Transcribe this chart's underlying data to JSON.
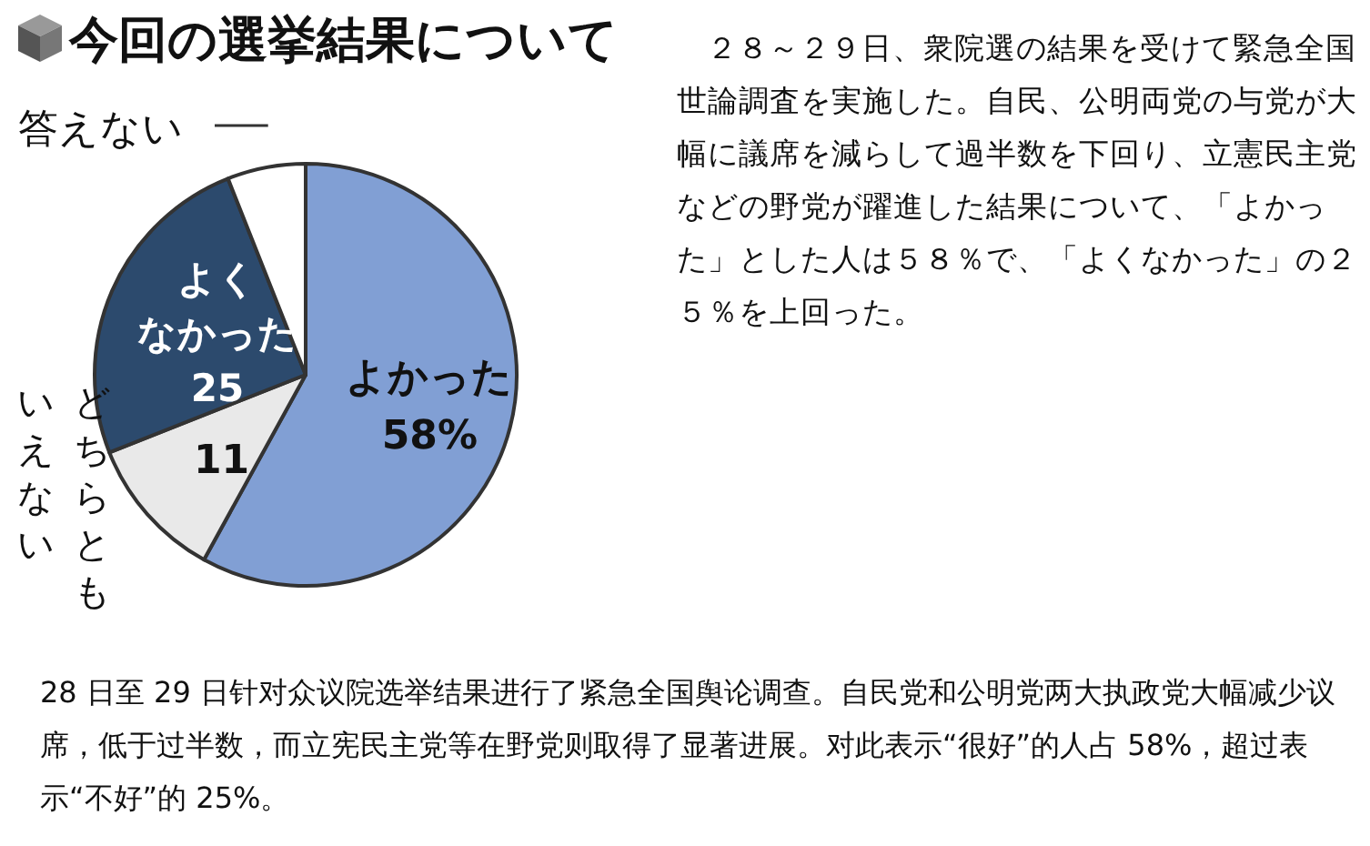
{
  "chart_data": {
    "type": "pie",
    "title": "今回の選挙結果について",
    "categories": [
      "よかった",
      "どちらともいえない",
      "よくなかった",
      "答えない"
    ],
    "values": [
      58,
      11,
      25,
      6
    ],
    "value_labels": [
      "58%",
      "11",
      "25",
      null
    ],
    "colors": [
      "#819fd4",
      "#e9e9e9",
      "#2c4a6d",
      "#ffffff"
    ],
    "annotations": [
      "２８～２９日、衆院選の結果を受けて緊急全国世論調査を実施した。自民、公明両党の与党が大幅に議席を減らして過半数を下回り、立憲民主党などの野党が躍進した結果について、「よかった」とした人は５８％で、「よくなかった」の２５％を上回った。",
      "28 日至 29 日针对众议院选举结果进行了紧急全国舆论调查。自民党和公明党两大执政党大幅减少议席，低于过半数，而立宪民主党等在野党则取得了显著进展。对此表示“很好”的人占 58%，超过表示“不好”的 25%。"
    ]
  }
}
